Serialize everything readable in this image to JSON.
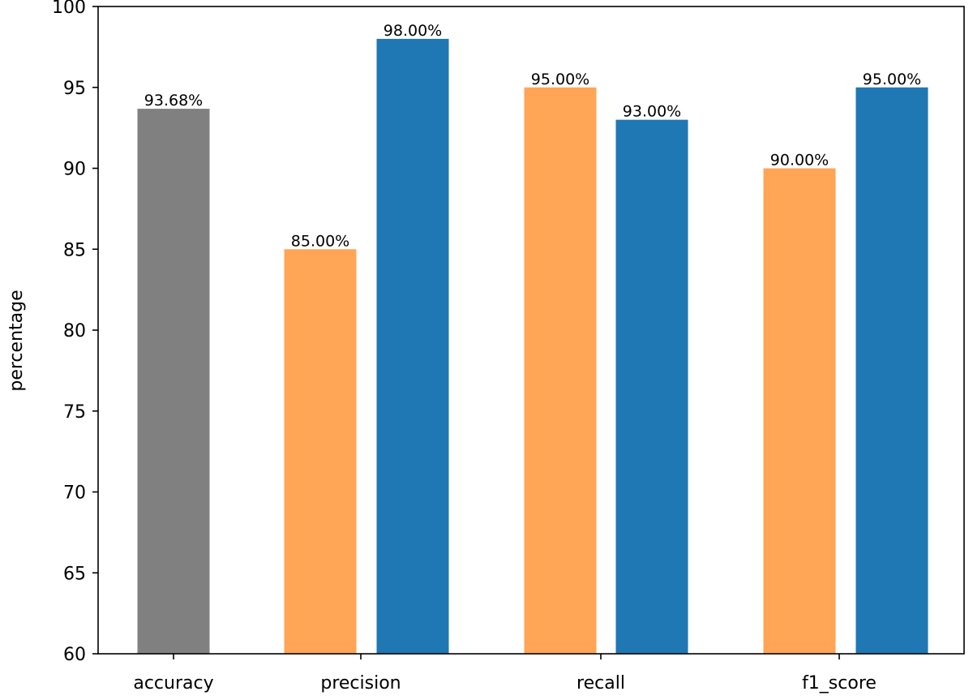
{
  "chart_data": {
    "type": "bar",
    "title": "",
    "xlabel": "",
    "ylabel": "percentage",
    "ylim": [
      60,
      100
    ],
    "yticks": [
      60,
      65,
      70,
      75,
      80,
      85,
      90,
      95,
      100
    ],
    "grid": false,
    "legend": "none",
    "categories": [
      "accuracy",
      "precision",
      "recall",
      "f1_score"
    ],
    "bars": [
      {
        "category": "accuracy",
        "value": 93.68,
        "label": "93.68%",
        "color": "#808080"
      },
      {
        "category": "precision",
        "value": 85.0,
        "label": "85.00%",
        "color": "#ffa555"
      },
      {
        "category": "precision",
        "value": 98.0,
        "label": "98.00%",
        "color": "#1f77b4"
      },
      {
        "category": "recall",
        "value": 95.0,
        "label": "95.00%",
        "color": "#ffa555"
      },
      {
        "category": "recall",
        "value": 93.0,
        "label": "93.00%",
        "color": "#1f77b4"
      },
      {
        "category": "f1_score",
        "value": 90.0,
        "label": "90.00%",
        "color": "#ffa555"
      },
      {
        "category": "f1_score",
        "value": 95.0,
        "label": "95.00%",
        "color": "#1f77b4"
      }
    ]
  }
}
